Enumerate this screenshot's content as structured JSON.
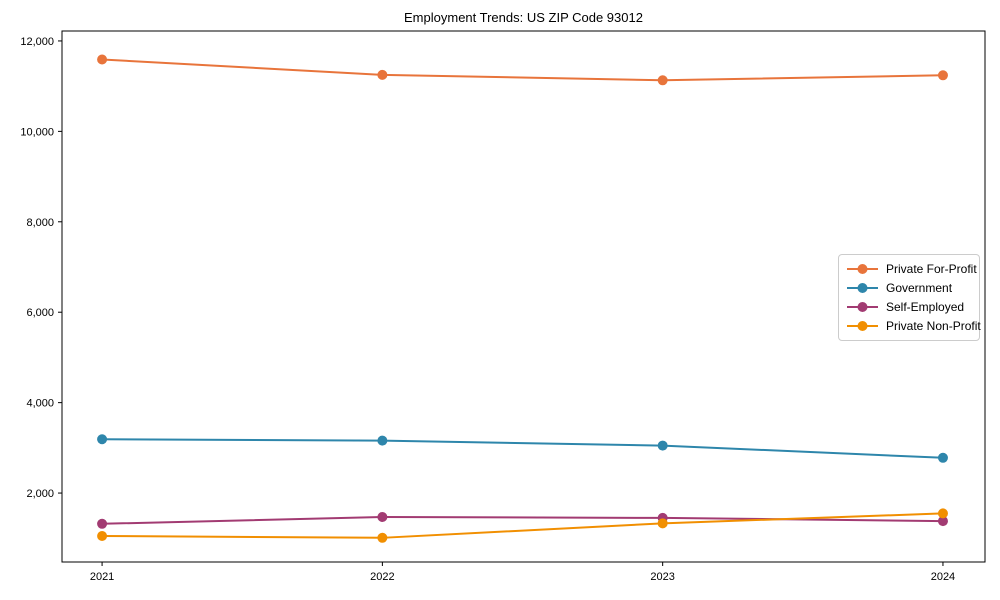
{
  "chart_data": {
    "type": "line",
    "title": "Employment Trends: US ZIP Code 93012",
    "xlabel": "",
    "ylabel": "",
    "x": [
      2021,
      2022,
      2023,
      2024
    ],
    "x_tick_labels": [
      "2021",
      "2022",
      "2023",
      "2024"
    ],
    "y_ticks": [
      2000,
      4000,
      6000,
      8000,
      10000,
      12000
    ],
    "y_tick_labels": [
      "2,000",
      "4,000",
      "6,000",
      "8,000",
      "10,000",
      "12,000"
    ],
    "xlim": [
      2020.857,
      2024.15
    ],
    "ylim": [
      475,
      12220
    ],
    "grid": false,
    "frame": true,
    "legend_position": "center-right",
    "marker": "circle",
    "colors": {
      "spine": "#000000",
      "tick": "#000000",
      "text": "#000000",
      "background": "#ffffff"
    },
    "series": [
      {
        "name": "Private For-Profit",
        "color": "#E8743B",
        "values": [
          11590,
          11250,
          11130,
          11240
        ]
      },
      {
        "name": "Government",
        "color": "#2E86AB",
        "values": [
          3190,
          3160,
          3050,
          2780
        ]
      },
      {
        "name": "Self-Employed",
        "color": "#A23B72",
        "values": [
          1320,
          1470,
          1450,
          1380
        ]
      },
      {
        "name": "Private Non-Profit",
        "color": "#F18F01",
        "values": [
          1050,
          1010,
          1330,
          1550
        ]
      }
    ]
  }
}
